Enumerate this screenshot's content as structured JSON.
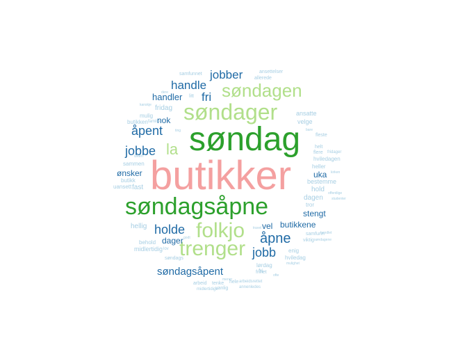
{
  "colors": {
    "pink": "#f4a0a0",
    "darkgreen": "#2ca02c",
    "lightgreen": "#b1df8a",
    "darkblue": "#1f6aa5",
    "lightblue": "#a6cee3"
  },
  "words": [
    {
      "text": "butikker",
      "color": "pink",
      "size": 5,
      "rot": 0
    },
    {
      "text": "søndag",
      "color": "darkgreen",
      "size": 5,
      "rot": 0
    },
    {
      "text": "søndagsåpne",
      "color": "darkgreen",
      "size": 4,
      "rot": 0
    },
    {
      "text": "søndager",
      "color": "lightgreen",
      "size": 4,
      "rot": 0
    },
    {
      "text": "folkjo",
      "color": "lightgreen",
      "size": 3,
      "rot": 0
    },
    {
      "text": "trenger",
      "color": "lightgreen",
      "size": 3,
      "rot": 0
    },
    {
      "text": "søndagen",
      "color": "lightgreen",
      "size": 3,
      "rot": 0
    },
    {
      "text": "la",
      "color": "lightgreen",
      "size": 3,
      "rot": 0
    },
    {
      "text": "åpne",
      "color": "darkblue",
      "size": 2,
      "rot": 0
    },
    {
      "text": "jobb",
      "color": "darkblue",
      "size": 2,
      "rot": 0
    },
    {
      "text": "åpent",
      "color": "darkblue",
      "size": 2,
      "rot": 0
    },
    {
      "text": "jobbe",
      "color": "darkblue",
      "size": 2,
      "rot": 0
    },
    {
      "text": "holde",
      "color": "darkblue",
      "size": 2,
      "rot": 0
    },
    {
      "text": "handle",
      "color": "darkblue",
      "size": 2,
      "rot": 0
    },
    {
      "text": "jobber",
      "color": "darkblue",
      "size": 2,
      "rot": 0
    },
    {
      "text": "fri",
      "color": "darkblue",
      "size": 2,
      "rot": 0
    },
    {
      "text": "søndagsåpent",
      "color": "darkblue",
      "size": 2,
      "rot": 0
    },
    {
      "text": "handler",
      "color": "darkblue",
      "size": 1,
      "rot": 0
    },
    {
      "text": "nok",
      "color": "darkblue",
      "size": 1,
      "rot": 0
    },
    {
      "text": "ønsker",
      "color": "darkblue",
      "size": 1,
      "rot": 0
    },
    {
      "text": "dager",
      "color": "darkblue",
      "size": 1,
      "rot": 0
    },
    {
      "text": "vel",
      "color": "darkblue",
      "size": 1,
      "rot": 0
    },
    {
      "text": "butikkene",
      "color": "darkblue",
      "size": 1,
      "rot": 0
    },
    {
      "text": "stengt",
      "color": "darkblue",
      "size": 1,
      "rot": 0
    },
    {
      "text": "uka",
      "color": "darkblue",
      "size": 1,
      "rot": 0
    },
    {
      "text": "fast",
      "color": "lightblue",
      "size": 1,
      "rot": 0
    },
    {
      "text": "fridag",
      "color": "lightblue",
      "size": 1,
      "rot": 0
    },
    {
      "text": "hold",
      "color": "lightblue",
      "size": 1,
      "rot": 0
    },
    {
      "text": "dagen",
      "color": "lightblue",
      "size": 1,
      "rot": 0
    },
    {
      "text": "hellig",
      "color": "lightblue",
      "size": 1,
      "rot": 0
    },
    {
      "text": "midlertidig",
      "color": "lightblue",
      "size": 1,
      "rot": 0
    },
    {
      "text": "bestemme",
      "color": "lightblue",
      "size": 1,
      "rot": 0
    },
    {
      "text": "ansatte",
      "color": "lightblue",
      "size": 1,
      "rot": 0
    },
    {
      "text": "velge",
      "color": "lightblue",
      "size": 1,
      "rot": 0
    },
    {
      "text": "hviledagen",
      "color": "lightblue",
      "size": 1,
      "rot": 0
    },
    {
      "text": "butikken",
      "color": "lightblue",
      "size": 1,
      "rot": 0
    },
    {
      "text": "mulig",
      "color": "lightblue",
      "size": 1,
      "rot": 0
    },
    {
      "text": "sammen",
      "color": "lightblue",
      "size": 1,
      "rot": 0
    },
    {
      "text": "butikk",
      "color": "lightblue",
      "size": 1,
      "rot": 0
    },
    {
      "text": "uansett",
      "color": "lightblue",
      "size": 1,
      "rot": 0
    },
    {
      "text": "behold",
      "color": "lightblue",
      "size": 1,
      "rot": 0
    },
    {
      "text": "lørdag",
      "color": "lightblue",
      "size": 1,
      "rot": 0
    },
    {
      "text": "hviledag",
      "color": "lightblue",
      "size": 1,
      "rot": 0
    },
    {
      "text": "enig",
      "color": "lightblue",
      "size": 1,
      "rot": 0
    },
    {
      "text": "fri",
      "color": "lightblue",
      "size": 1,
      "rot": 0
    },
    {
      "text": "tror",
      "color": "lightblue",
      "size": 1,
      "rot": 0
    },
    {
      "text": "heller",
      "color": "lightblue",
      "size": 1,
      "rot": 0
    },
    {
      "text": "helt",
      "color": "lightblue",
      "size": 1,
      "rot": 0
    },
    {
      "text": "fleste",
      "color": "lightblue",
      "size": 1,
      "rot": 0
    },
    {
      "text": "flere",
      "color": "lightblue",
      "size": 1,
      "rot": 0
    },
    {
      "text": "samfunnet",
      "color": "lightblue",
      "size": 1,
      "rot": 0
    },
    {
      "text": "allerede",
      "color": "lightblue",
      "size": 1,
      "rot": 0
    },
    {
      "text": "ansettelser",
      "color": "lightblue",
      "size": 1,
      "rot": 0
    },
    {
      "text": "litt",
      "color": "lightblue",
      "size": 1,
      "rot": 0
    },
    {
      "text": "familie",
      "color": "lightblue",
      "size": 1,
      "rot": 0
    },
    {
      "text": "frihet",
      "color": "lightblue",
      "size": 1,
      "rot": 0
    },
    {
      "text": "arbeid",
      "color": "lightblue",
      "size": 1,
      "rot": 0
    },
    {
      "text": "tenke",
      "color": "lightblue",
      "size": 1,
      "rot": 0
    },
    {
      "text": "vanlig",
      "color": "lightblue",
      "size": 1,
      "rot": 0
    },
    {
      "text": "hele",
      "color": "lightblue",
      "size": 1,
      "rot": 0
    },
    {
      "text": "arbeidsrettet",
      "color": "lightblue",
      "size": 1,
      "rot": 0
    },
    {
      "text": "annenledes",
      "color": "lightblue",
      "size": 1,
      "rot": 0
    },
    {
      "text": "midlertidige",
      "color": "lightblue",
      "size": 1,
      "rot": 0
    },
    {
      "text": "søndags",
      "color": "lightblue",
      "size": 1,
      "rot": 0
    },
    {
      "text": "viktig",
      "color": "lightblue",
      "size": 1,
      "rot": 0
    },
    {
      "text": "samfunn",
      "color": "lightblue",
      "size": 1,
      "rot": 0
    },
    {
      "text": "uken",
      "color": "lightblue",
      "size": 1,
      "rot": 0
    },
    {
      "text": "lov",
      "color": "lightblue",
      "size": 1,
      "rot": 0
    },
    {
      "text": "fridager",
      "color": "lightblue",
      "size": 1,
      "rot": 0
    },
    {
      "text": "studenter",
      "color": "lightblue",
      "size": 1,
      "rot": 0
    },
    {
      "text": "handlet",
      "color": "lightblue",
      "size": 1,
      "rot": 0
    },
    {
      "text": "offentlige",
      "color": "lightblue",
      "size": 1,
      "rot": 0
    },
    {
      "text": "kirken",
      "color": "lightblue",
      "size": 1,
      "rot": 0
    },
    {
      "text": "mulighet",
      "color": "lightblue",
      "size": 1,
      "rot": 0
    },
    {
      "text": "søndagene",
      "color": "lightblue",
      "size": 1,
      "rot": 0
    },
    {
      "text": "dere",
      "color": "lightblue",
      "size": 1,
      "rot": 0
    },
    {
      "text": "mener",
      "color": "lightblue",
      "size": 1,
      "rot": 0
    },
    {
      "text": "ofte",
      "color": "lightblue",
      "size": 1,
      "rot": 0
    },
    {
      "text": "godt",
      "color": "lightblue",
      "size": 1,
      "rot": 0
    },
    {
      "text": "bare",
      "color": "lightblue",
      "size": 1,
      "rot": 0
    },
    {
      "text": "ting",
      "color": "lightblue",
      "size": 1,
      "rot": 0
    },
    {
      "text": "travel",
      "color": "lightblue",
      "size": 1,
      "rot": 0
    },
    {
      "text": "kanskje",
      "color": "lightblue",
      "size": 1,
      "rot": 0
    }
  ]
}
